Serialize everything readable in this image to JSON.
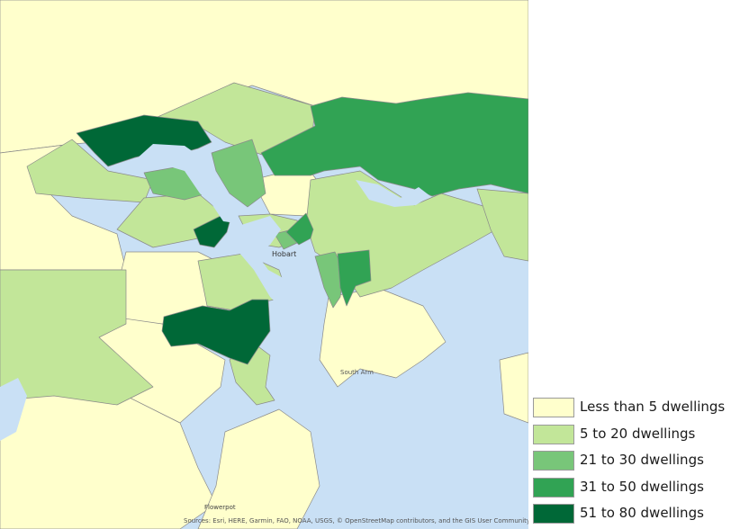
{
  "map": {
    "place_labels": {
      "hobart": "Hobart",
      "south_arm": "South Arm",
      "flowerpot": "Flowerpot"
    },
    "attribution": "Sources: Esri, HERE, Garmin, FAO, NOAA, USGS, © OpenStreetMap contributors, and the GIS User Community",
    "colors": {
      "water": "#c9e0f5",
      "border": "#8a8a8a"
    }
  },
  "legend": {
    "items": [
      {
        "label": "Less than 5 dwellings",
        "color": "#ffffcc"
      },
      {
        "label": "5 to 20 dwellings",
        "color": "#c2e699"
      },
      {
        "label": "21 to 30 dwellings",
        "color": "#78c679"
      },
      {
        "label": "31 to 50 dwellings",
        "color": "#31a354"
      },
      {
        "label": "51 to 80 dwellings",
        "color": "#006837"
      }
    ]
  }
}
